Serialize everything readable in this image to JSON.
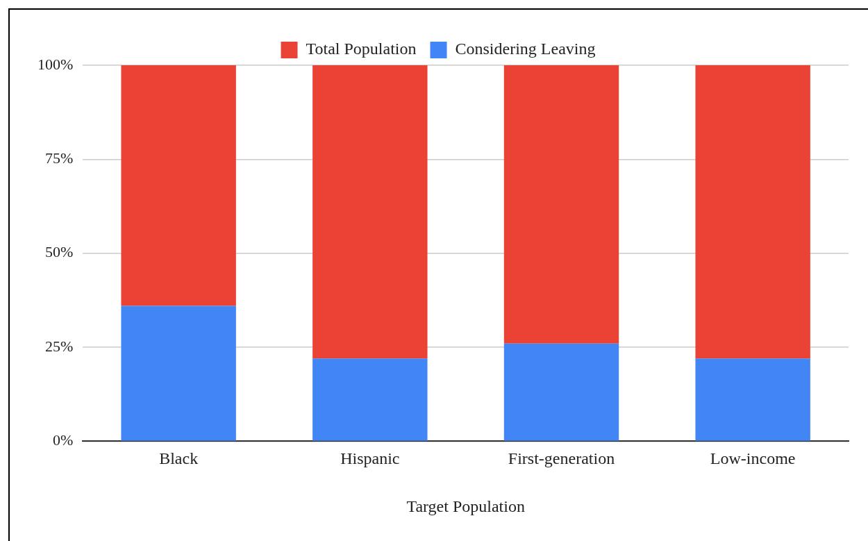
{
  "chart_data": {
    "type": "bar",
    "stacked": true,
    "xlabel": "Target Population",
    "categories": [
      "Black",
      "Hispanic",
      "First-generation",
      "Low-income"
    ],
    "series": [
      {
        "name": "Considering Leaving",
        "color": "#4285f4",
        "values": [
          36,
          22,
          26,
          22
        ]
      },
      {
        "name": "Total Population",
        "color": "#ea4335",
        "values": [
          64,
          78,
          74,
          78
        ]
      }
    ],
    "ylim": [
      0,
      100
    ],
    "yticks": [
      {
        "value": 0,
        "label": "0%"
      },
      {
        "value": 25,
        "label": "25%"
      },
      {
        "value": 50,
        "label": "50%"
      },
      {
        "value": 75,
        "label": "75%"
      },
      {
        "value": 100,
        "label": "100%"
      }
    ],
    "grid": "y",
    "legend": "top"
  }
}
